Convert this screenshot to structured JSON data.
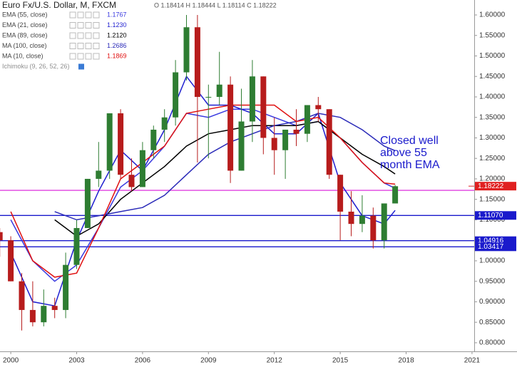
{
  "chart_data": {
    "type": "candlestick",
    "title": "Euro Fx/U.S. Dollar, M, FXCM",
    "ohlc_readout": "O 1.18414 H 1.18444 L 1.18114 C 1.18222",
    "x": [
      1999.5,
      2000,
      2000.5,
      2001,
      2001.5,
      2002,
      2002.5,
      2003,
      2003.5,
      2004,
      2004.5,
      2005,
      2005.5,
      2006,
      2006.5,
      2007,
      2007.5,
      2008,
      2008.5,
      2009,
      2009.5,
      2010,
      2010.5,
      2011,
      2011.5,
      2012,
      2012.5,
      2013,
      2013.5,
      2014,
      2014.5,
      2015,
      2015.5,
      2016,
      2016.5,
      2017,
      2017.5
    ],
    "open": [
      1.07,
      1.05,
      0.95,
      0.88,
      0.85,
      0.89,
      0.88,
      0.99,
      1.08,
      1.2,
      1.22,
      1.36,
      1.21,
      1.18,
      1.27,
      1.32,
      1.35,
      1.46,
      1.57,
      1.4,
      1.4,
      1.43,
      1.22,
      1.34,
      1.45,
      1.3,
      1.27,
      1.32,
      1.31,
      1.38,
      1.37,
      1.21,
      1.12,
      1.09,
      1.11,
      1.05,
      1.14
    ],
    "high": [
      1.08,
      1.06,
      0.97,
      0.95,
      0.93,
      0.91,
      1.02,
      1.1,
      1.2,
      1.29,
      1.36,
      1.37,
      1.25,
      1.29,
      1.33,
      1.37,
      1.49,
      1.6,
      1.6,
      1.43,
      1.51,
      1.45,
      1.42,
      1.49,
      1.45,
      1.35,
      1.32,
      1.37,
      1.38,
      1.4,
      1.37,
      1.21,
      1.17,
      1.16,
      1.13,
      1.14,
      1.185
    ],
    "low": [
      1.01,
      0.95,
      0.83,
      0.84,
      0.84,
      0.86,
      0.86,
      0.98,
      1.08,
      1.18,
      1.2,
      1.2,
      1.17,
      1.18,
      1.25,
      1.29,
      1.33,
      1.44,
      1.24,
      1.25,
      1.38,
      1.19,
      1.22,
      1.29,
      1.26,
      1.21,
      1.2,
      1.28,
      1.29,
      1.34,
      1.2,
      1.05,
      1.06,
      1.07,
      1.03,
      1.03,
      1.14
    ],
    "close": [
      1.05,
      0.95,
      0.88,
      0.85,
      0.89,
      0.88,
      0.99,
      1.08,
      1.2,
      1.22,
      1.36,
      1.21,
      1.18,
      1.27,
      1.32,
      1.35,
      1.46,
      1.57,
      1.4,
      1.4,
      1.43,
      1.22,
      1.34,
      1.45,
      1.3,
      1.27,
      1.32,
      1.31,
      1.38,
      1.37,
      1.21,
      1.12,
      1.09,
      1.11,
      1.05,
      1.14,
      1.182
    ],
    "up_color": "#2e7d32",
    "down_color": "#b71c1c",
    "overlays": {
      "x": [
        2000,
        2001,
        2002,
        2003,
        2004,
        2005,
        2006,
        2007,
        2008,
        2009,
        2010,
        2011,
        2012,
        2013,
        2014,
        2015,
        2016,
        2017,
        2017.5
      ],
      "series": [
        {
          "name": "EMA (55, close)",
          "last": "1.1767",
          "color": "#3a3ae0",
          "values": [
            1.1,
            1.0,
            0.95,
            0.99,
            1.08,
            1.18,
            1.22,
            1.28,
            1.36,
            1.35,
            1.37,
            1.37,
            1.35,
            1.33,
            1.34,
            1.3,
            1.24,
            1.19,
            1.177
          ]
        },
        {
          "name": "EMA (21, close)",
          "last": "1.1230",
          "color": "#1f1fd0",
          "values": [
            1.02,
            0.9,
            0.89,
            1.05,
            1.17,
            1.27,
            1.22,
            1.32,
            1.45,
            1.38,
            1.38,
            1.36,
            1.31,
            1.31,
            1.36,
            1.19,
            1.11,
            1.09,
            1.123
          ]
        },
        {
          "name": "EMA (89, close)",
          "last": "1.2120",
          "color": "#000000",
          "values": [
            null,
            null,
            1.1,
            1.06,
            1.09,
            1.15,
            1.19,
            1.23,
            1.28,
            1.31,
            1.32,
            1.33,
            1.33,
            1.33,
            1.34,
            1.3,
            1.26,
            1.23,
            1.212
          ]
        },
        {
          "name": "MA (100, close)",
          "last": "1.2686",
          "color": "#2a2ab8",
          "values": [
            null,
            null,
            1.12,
            1.1,
            1.11,
            1.12,
            1.13,
            1.16,
            1.21,
            1.26,
            1.29,
            1.31,
            1.33,
            1.34,
            1.36,
            1.35,
            1.32,
            1.28,
            1.2686
          ]
        },
        {
          "name": "MA (10, close)",
          "last": "1.1869",
          "color": "#e01010",
          "values": [
            1.12,
            1.0,
            0.96,
            0.97,
            1.08,
            1.2,
            1.24,
            1.28,
            1.36,
            1.37,
            1.38,
            1.38,
            1.38,
            1.34,
            1.35,
            1.3,
            1.24,
            1.19,
            1.187
          ]
        }
      ]
    },
    "legend_extra": [
      "Ichimoku (9, 26, 52, 26)"
    ],
    "hlines": [
      {
        "value": 1.172,
        "color": "#e040e0"
      },
      {
        "value": 1.1107,
        "label": "1.11070",
        "color": "#1a1acc"
      },
      {
        "value": 1.04916,
        "color": "#1a1acc"
      },
      {
        "value": 1.03417,
        "color": "#1a1acc"
      }
    ],
    "last_price": {
      "value": 1.18222,
      "color": "#e02020"
    },
    "annotation": {
      "lines": [
        "Closed well",
        "above 55",
        "month EMA"
      ],
      "color": "#1a1acc"
    },
    "xlim": [
      1999.51,
      2021.1
    ],
    "xticks": [
      2000,
      2003,
      2006,
      2009,
      2012,
      2015,
      2018,
      2021
    ],
    "ylim": [
      0.779,
      1.6365
    ],
    "yticks": [
      {
        "value": 0.8,
        "label": "0.80000"
      },
      {
        "value": 0.85,
        "label": "0.85000"
      },
      {
        "value": 0.9,
        "label": "0.90000"
      },
      {
        "value": 0.95,
        "label": "0.95000"
      },
      {
        "value": 1.0,
        "label": "1.00000"
      },
      {
        "value": 1.05,
        "label": "1.05000"
      },
      {
        "value": 1.1,
        "label": "1.10000"
      },
      {
        "value": 1.15,
        "label": "1.15000"
      },
      {
        "value": 1.2,
        "label": "1.20000"
      },
      {
        "value": 1.25,
        "label": "1.25000"
      },
      {
        "value": 1.3,
        "label": "1.30000"
      },
      {
        "value": 1.35,
        "label": "1.35000"
      },
      {
        "value": 1.4,
        "label": "1.40000"
      },
      {
        "value": 1.45,
        "label": "1.45000"
      },
      {
        "value": 1.5,
        "label": "1.50000"
      },
      {
        "value": 1.55,
        "label": "1.55000"
      },
      {
        "value": 1.6,
        "label": "1.60000"
      }
    ]
  }
}
